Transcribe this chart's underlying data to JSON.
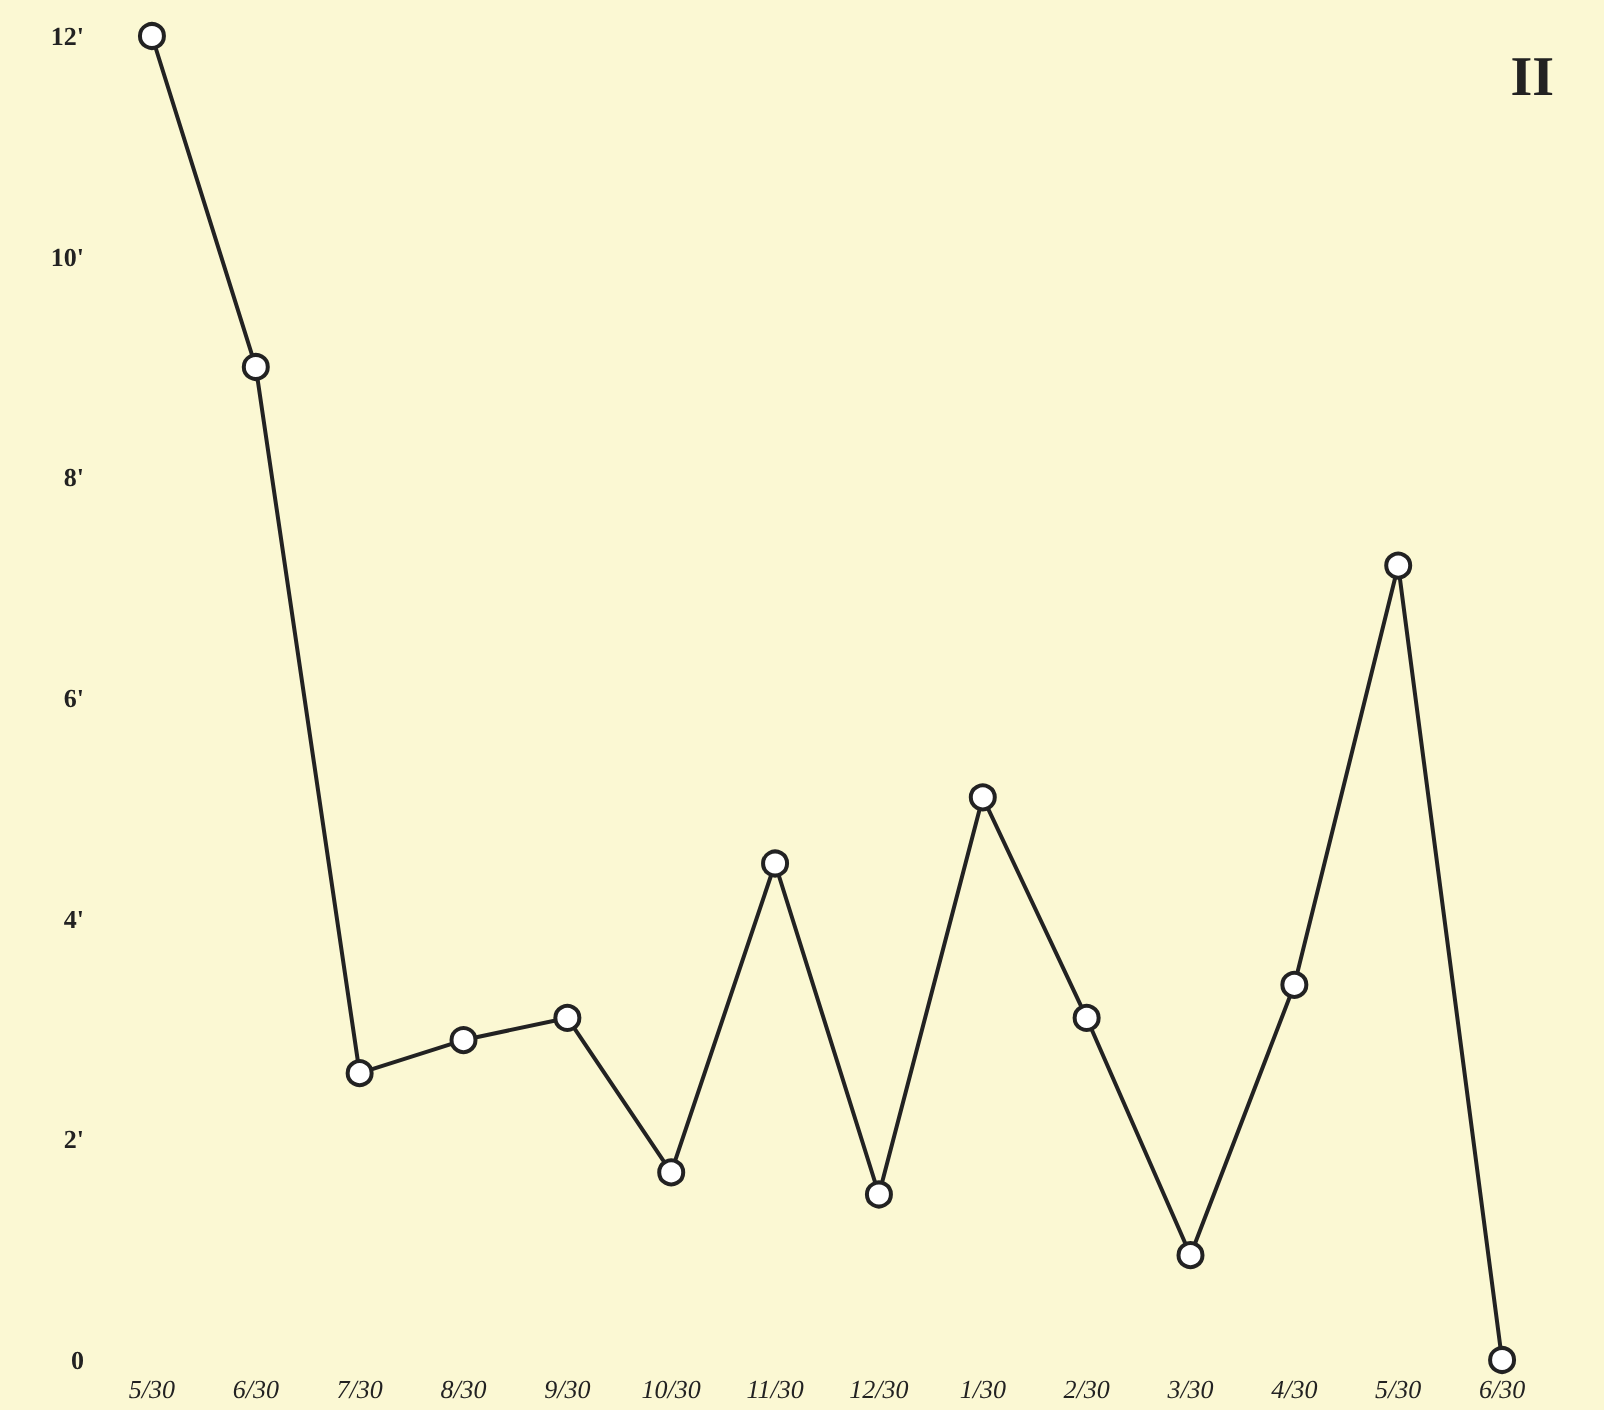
{
  "chart_data": {
    "type": "line",
    "categories": [
      "5/30",
      "6/30",
      "7/30",
      "8/30",
      "9/30",
      "10/30",
      "11/30",
      "12/30",
      "1/30",
      "2/30",
      "3/30",
      "4/30",
      "5/30",
      "6/30"
    ],
    "series": [
      {
        "color": "#222222",
        "values": [
          12,
          9.0,
          2.6,
          2.9,
          3.1,
          1.7,
          4.5,
          1.5,
          5.1,
          3.1,
          0.95,
          3.4,
          7.2,
          0
        ]
      }
    ],
    "ylim": [
      0,
      12
    ],
    "yticks": [
      {
        "value": 0,
        "label": "0"
      },
      {
        "value": 2,
        "label": "2'"
      },
      {
        "value": 4,
        "label": "4'"
      },
      {
        "value": 6,
        "label": "6'"
      },
      {
        "value": 8,
        "label": "8'"
      },
      {
        "value": 10,
        "label": "10'"
      },
      {
        "value": 12,
        "label": "12'"
      }
    ],
    "marker": "circle",
    "line_style": "solid",
    "annotations": [
      "II"
    ]
  }
}
